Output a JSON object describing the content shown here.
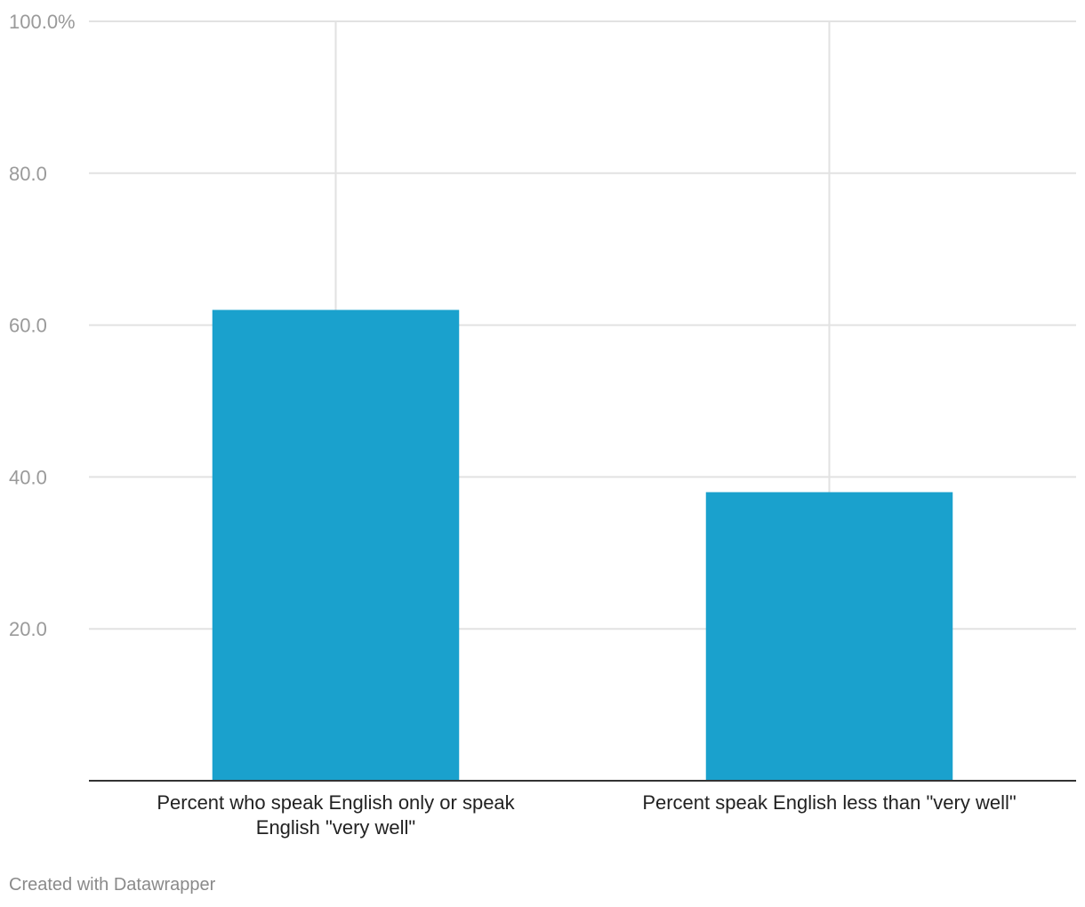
{
  "chart_data": {
    "type": "bar",
    "categories": [
      [
        "Percent who speak English only or speak",
        "English \"very well\""
      ],
      [
        "Percent speak English less than \"very well\""
      ]
    ],
    "values": [
      62,
      38
    ],
    "ylim": [
      0,
      100
    ],
    "yticks": [
      20,
      40,
      60,
      80,
      100
    ],
    "ytick_labels": [
      "20.0",
      "40.0",
      "60.0",
      "80.0",
      "100.0%"
    ],
    "title": "",
    "xlabel": "",
    "ylabel": "",
    "grid": true,
    "bar_color": "#1aa1cd"
  },
  "footer": {
    "credit": "Created with Datawrapper"
  }
}
